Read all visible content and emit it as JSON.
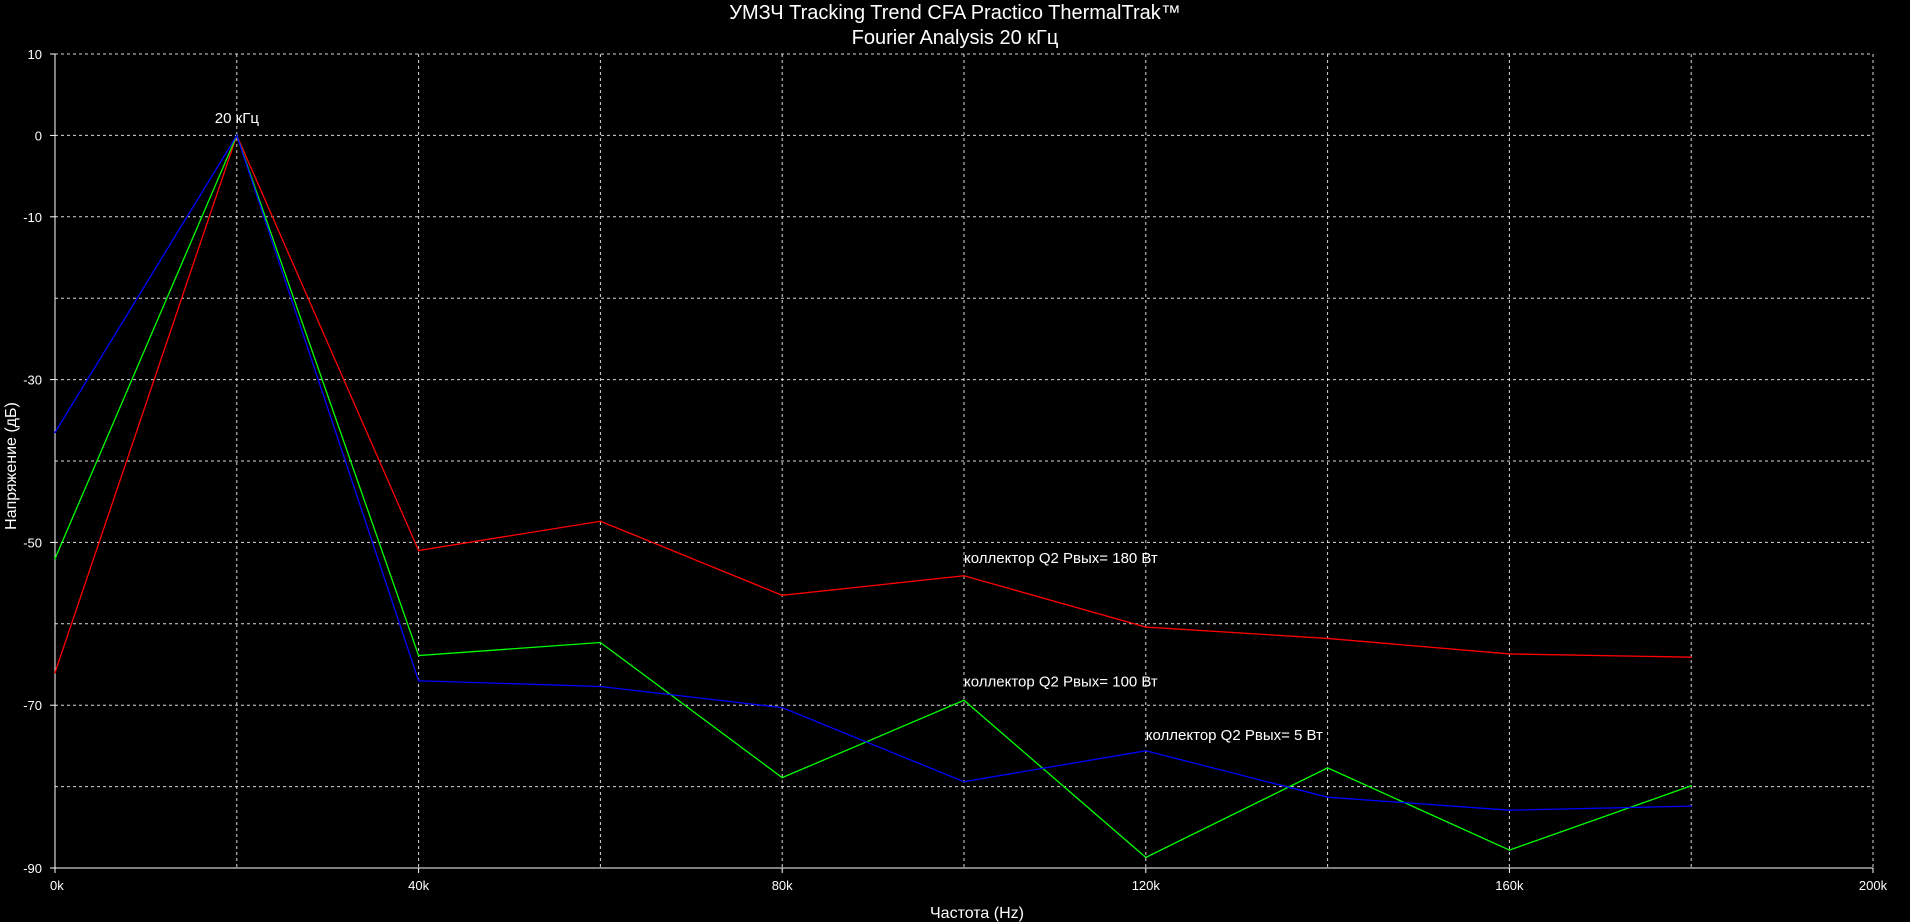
{
  "chart_data": {
    "type": "line",
    "title": "УМЗЧ Tracking Trend CFA Practico ThermalTrak™",
    "subtitle": "Fourier Analysis 20 кГц",
    "xlabel": "Частота (Hz)",
    "ylabel": "Напряжение (дБ)",
    "xlim": [
      0,
      200000
    ],
    "ylim": [
      -90,
      10
    ],
    "x_ticks": [
      0,
      40000,
      80000,
      120000,
      160000,
      200000
    ],
    "x_tick_labels": [
      "0k",
      "40k",
      "80k",
      "120k",
      "160k",
      "200k"
    ],
    "y_ticks": [
      10,
      0,
      -10,
      -30,
      -50,
      -70,
      -90
    ],
    "y_tick_labels": [
      "10",
      "0",
      "-10",
      "-30",
      "-50",
      "-70",
      "-90"
    ],
    "grid": true,
    "x": [
      0,
      20000,
      40000,
      60000,
      80000,
      100000,
      120000,
      140000,
      160000,
      180000
    ],
    "series": [
      {
        "color": "#ff0000",
        "values": [
          -66,
          0,
          -51,
          -47.4,
          -56.5,
          -54.1,
          -60.4,
          -61.8,
          -63.7,
          -64.1
        ]
      },
      {
        "color": "#00ff00",
        "values": [
          -52,
          0,
          -63.9,
          -62.3,
          -78.9,
          -69.4,
          -88.7,
          -77.7,
          -87.8,
          -79.9
        ]
      },
      {
        "color": "#0000ff",
        "values": [
          -36.5,
          0,
          -67,
          -67.7,
          -70.3,
          -79.4,
          -75.6,
          -81.3,
          -82.9,
          -82.4
        ]
      }
    ],
    "annotations": [
      {
        "text": "20 кГц",
        "x": 20000,
        "y": 1.5
      },
      {
        "text": "коллектор Q2 Pвых= 180 Вт",
        "x": 100000,
        "y": -52.5
      },
      {
        "text": "коллектор Q2 Pвых= 100 Вт",
        "x": 100000,
        "y": -67.7
      },
      {
        "text": "коллектор Q2 Pвых= 5 Вт",
        "x": 120000,
        "y": -74.3
      }
    ],
    "colors": {
      "background": "#000000",
      "grid": "#ffffff",
      "axis": "#ffffff",
      "text": "#ffffff"
    }
  }
}
